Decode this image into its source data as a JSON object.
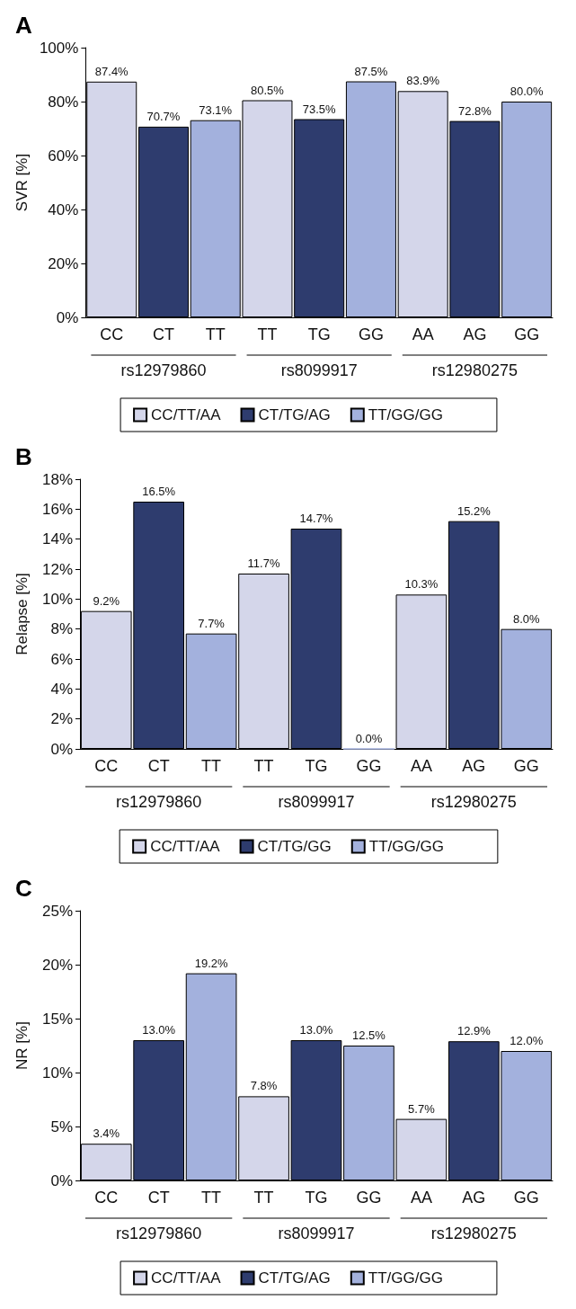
{
  "chart_data": [
    {
      "type": "bar",
      "title": "A",
      "ylabel": "SVR [%]",
      "categories": [
        "CC",
        "CT",
        "TT",
        "TT",
        "TG",
        "GG",
        "AA",
        "AG",
        "GG"
      ],
      "series": [
        {
          "name": "CC/TT/AA",
          "color": "#d4d6ea",
          "values": [
            87.4,
            null,
            null,
            80.5,
            null,
            null,
            83.9,
            null,
            null
          ],
          "value_labels": [
            "87.4%",
            null,
            null,
            "80.5%",
            null,
            null,
            "83.9%",
            null,
            null
          ]
        },
        {
          "name": "CT/TG/AG",
          "color": "#2e3c6e",
          "values": [
            null,
            70.7,
            null,
            null,
            73.5,
            null,
            null,
            72.8,
            null
          ],
          "value_labels": [
            null,
            "70.7%",
            null,
            null,
            "73.5%",
            null,
            null,
            "72.8%",
            null
          ]
        },
        {
          "name": "TT/GG/GG",
          "color": "#a3b1dd",
          "values": [
            null,
            null,
            73.1,
            null,
            null,
            87.5,
            null,
            null,
            80.0
          ],
          "value_labels": [
            null,
            null,
            "73.1%",
            null,
            null,
            "87.5%",
            null,
            null,
            "80.0%"
          ]
        }
      ],
      "ylim": [
        0,
        100
      ],
      "yticks": [
        {
          "value": 0,
          "label": "0%"
        },
        {
          "value": 20,
          "label": "20%"
        },
        {
          "value": 40,
          "label": "40%"
        },
        {
          "value": 60,
          "label": "60%"
        },
        {
          "value": 80,
          "label": "80%"
        },
        {
          "value": 100,
          "label": "100%"
        }
      ],
      "annotations": [
        "rs12979860",
        "rs8099917",
        "rs12980275"
      ],
      "legend": "bottom",
      "grid": false
    },
    {
      "type": "bar",
      "title": "B",
      "ylabel": "Relapse [%]",
      "categories": [
        "CC",
        "CT",
        "TT",
        "TT",
        "TG",
        "GG",
        "AA",
        "AG",
        "GG"
      ],
      "series": [
        {
          "name": "CC/TT/AA",
          "color": "#d4d6ea",
          "values": [
            9.2,
            null,
            null,
            11.7,
            null,
            null,
            10.3,
            null,
            null
          ],
          "value_labels": [
            "9.2%",
            null,
            null,
            "11.7%",
            null,
            null,
            "10.3%",
            null,
            null
          ]
        },
        {
          "name": "CT/TG/GG",
          "color": "#2e3c6e",
          "values": [
            null,
            16.5,
            null,
            null,
            14.7,
            null,
            null,
            15.2,
            null
          ],
          "value_labels": [
            null,
            "16.5%",
            null,
            null,
            "14.7%",
            null,
            null,
            "15.2%",
            null
          ]
        },
        {
          "name": "TT/GG/GG",
          "color": "#a3b1dd",
          "values": [
            null,
            null,
            7.7,
            null,
            null,
            0.0,
            null,
            null,
            8.0
          ],
          "value_labels": [
            null,
            null,
            "7.7%",
            null,
            null,
            "0.0%",
            null,
            null,
            "8.0%"
          ]
        }
      ],
      "ylim": [
        0,
        18
      ],
      "yticks": [
        {
          "value": 0,
          "label": "0%"
        },
        {
          "value": 2,
          "label": "2%"
        },
        {
          "value": 4,
          "label": "4%"
        },
        {
          "value": 6,
          "label": "6%"
        },
        {
          "value": 8,
          "label": "8%"
        },
        {
          "value": 10,
          "label": "10%"
        },
        {
          "value": 12,
          "label": "12%"
        },
        {
          "value": 14,
          "label": "14%"
        },
        {
          "value": 16,
          "label": "16%"
        },
        {
          "value": 18,
          "label": "18%"
        }
      ],
      "annotations": [
        "rs12979860",
        "rs8099917",
        "rs12980275"
      ],
      "legend": "bottom",
      "grid": false
    },
    {
      "type": "bar",
      "title": "C",
      "ylabel": "NR [%]",
      "categories": [
        "CC",
        "CT",
        "TT",
        "TT",
        "TG",
        "GG",
        "AA",
        "AG",
        "GG"
      ],
      "series": [
        {
          "name": "CC/TT/AA",
          "color": "#d4d6ea",
          "values": [
            3.4,
            null,
            null,
            7.8,
            null,
            null,
            5.7,
            null,
            null
          ],
          "value_labels": [
            "3.4%",
            null,
            null,
            "7.8%",
            null,
            null,
            "5.7%",
            null,
            null
          ]
        },
        {
          "name": "CT/TG/AG",
          "color": "#2e3c6e",
          "values": [
            null,
            13.0,
            null,
            null,
            13.0,
            null,
            null,
            12.9,
            null
          ],
          "value_labels": [
            null,
            "13.0%",
            null,
            null,
            "13.0%",
            null,
            null,
            "12.9%",
            null
          ]
        },
        {
          "name": "TT/GG/GG",
          "color": "#a3b1dd",
          "values": [
            null,
            null,
            19.2,
            null,
            null,
            12.5,
            null,
            null,
            12.0
          ],
          "value_labels": [
            null,
            null,
            "19.2%",
            null,
            null,
            "12.5%",
            null,
            null,
            "12.0%"
          ]
        }
      ],
      "ylim": [
        0,
        25
      ],
      "yticks": [
        {
          "value": 0,
          "label": "0%"
        },
        {
          "value": 5,
          "label": "5%"
        },
        {
          "value": 10,
          "label": "10%"
        },
        {
          "value": 15,
          "label": "15%"
        },
        {
          "value": 20,
          "label": "20%"
        },
        {
          "value": 25,
          "label": "25%"
        }
      ],
      "annotations": [
        "rs12979860",
        "rs8099917",
        "rs12980275"
      ],
      "legend": "bottom",
      "grid": false
    }
  ]
}
